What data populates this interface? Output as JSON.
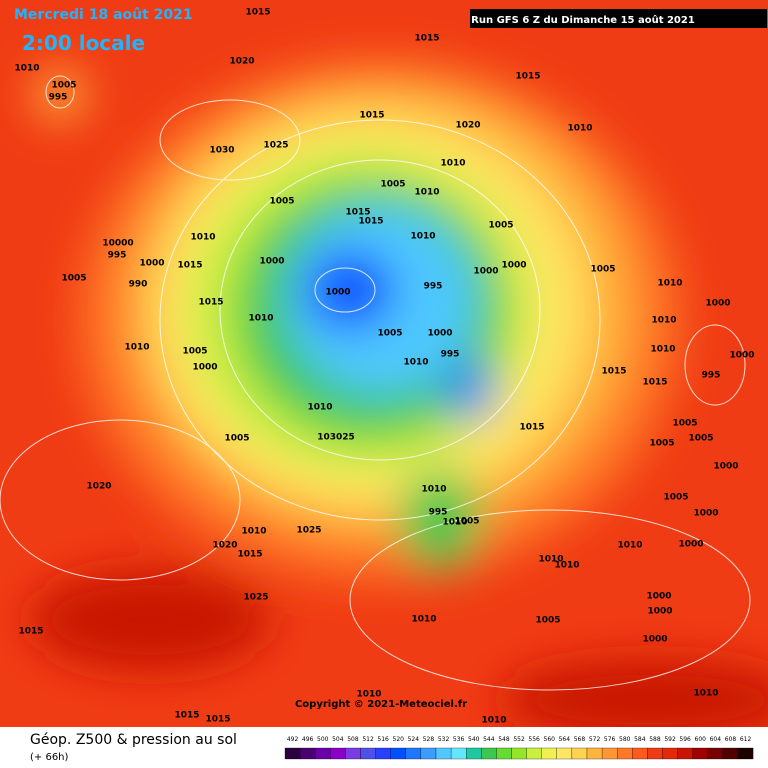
{
  "header": {
    "date": "Mercredi 18 août 2021",
    "time": "2:00 locale",
    "run": "Run GFS 6 Z du Dimanche 15 août 2021"
  },
  "copyright": "Copyright © 2021-Meteociel.fr",
  "isobar_labels": [
    "1015",
    "1015",
    "1010",
    "1020",
    "1005",
    "995",
    "1015",
    "1015",
    "1020",
    "1010",
    "1030",
    "1025",
    "1010",
    "1005",
    "1010",
    "1005",
    "1015",
    "1015",
    "1010",
    "1010",
    "1005",
    "10000",
    "995",
    "1000",
    "1015",
    "1000",
    "1000",
    "1000",
    "1005",
    "1005",
    "990",
    "1000",
    "995",
    "1010",
    "1015",
    "1010",
    "1000",
    "1005",
    "1000",
    "1010",
    "1010",
    "1005",
    "995",
    "1010",
    "1000",
    "1010",
    "1000",
    "995",
    "1015",
    "1015",
    "1010",
    "1015",
    "1005",
    "1005",
    "103025",
    "1005",
    "1005",
    "1010",
    "1000",
    "1020",
    "1005",
    "995",
    "1010",
    "1005",
    "1000",
    "1010",
    "1025",
    "1020",
    "1015",
    "1010",
    "1010",
    "1000",
    "1010",
    "1025",
    "1000",
    "1000",
    "1015",
    "1010",
    "1005",
    "1000",
    "1010",
    "1010",
    "1015",
    "1015",
    "1010"
  ],
  "legend": {
    "title": "Géop. Z500 & pression au sol",
    "lead": "(+ 66h)",
    "values": [
      492,
      496,
      500,
      504,
      508,
      512,
      516,
      520,
      524,
      528,
      532,
      536,
      540,
      544,
      548,
      552,
      556,
      560,
      564,
      568,
      572,
      576,
      580,
      584,
      588,
      592,
      596,
      600,
      604,
      608,
      612
    ],
    "colors": [
      "#2b0040",
      "#4b0072",
      "#6a00a8",
      "#8a00c8",
      "#7a3ce0",
      "#5050e8",
      "#2840ff",
      "#0050ff",
      "#1e78ff",
      "#3c9cff",
      "#50c8ff",
      "#64e6ff",
      "#1ec8a0",
      "#3cc850",
      "#64dc32",
      "#96e628",
      "#c8f03c",
      "#f0f050",
      "#ffe664",
      "#ffd250",
      "#ffb43c",
      "#ff9632",
      "#ff7828",
      "#ff5a1e",
      "#f03c14",
      "#e6280a",
      "#c81400",
      "#a00000",
      "#780000",
      "#500000",
      "#1e0000"
    ]
  }
}
